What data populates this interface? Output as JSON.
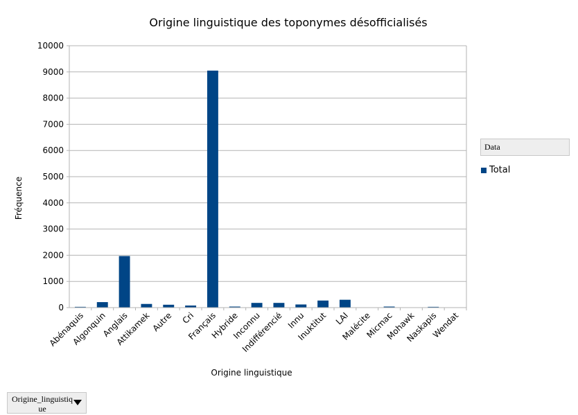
{
  "chart_data": {
    "type": "bar",
    "title": "Origine linguistique des toponymes désofficialisés",
    "xlabel": "Origine linguistique",
    "ylabel": "Fréquence",
    "ylim": [
      0,
      10000
    ],
    "yticks": [
      0,
      1000,
      2000,
      3000,
      4000,
      5000,
      6000,
      7000,
      8000,
      9000,
      10000
    ],
    "grid": true,
    "legend_position": "right",
    "categories": [
      "Abénaquis",
      "Algonquin",
      "Anglais",
      "Attikamek",
      "Autre",
      "Cri",
      "Français",
      "Hybride",
      "Inconnu",
      "Indifférencié",
      "Innu",
      "Inuktitut",
      "LAI",
      "Malécite",
      "Micmac",
      "Mohawk",
      "Naskapis",
      "Wendat"
    ],
    "series": [
      {
        "name": "Total",
        "color": "#004586",
        "values": [
          30,
          210,
          1970,
          140,
          110,
          80,
          9050,
          40,
          180,
          180,
          120,
          270,
          300,
          10,
          40,
          5,
          30,
          10
        ]
      }
    ]
  },
  "legend": {
    "header": "Data",
    "entry_label": "Total",
    "swatch_color": "#004586"
  },
  "field_button": {
    "label": "Origine_linguistique",
    "icon": "dropdown-arrow-icon"
  }
}
